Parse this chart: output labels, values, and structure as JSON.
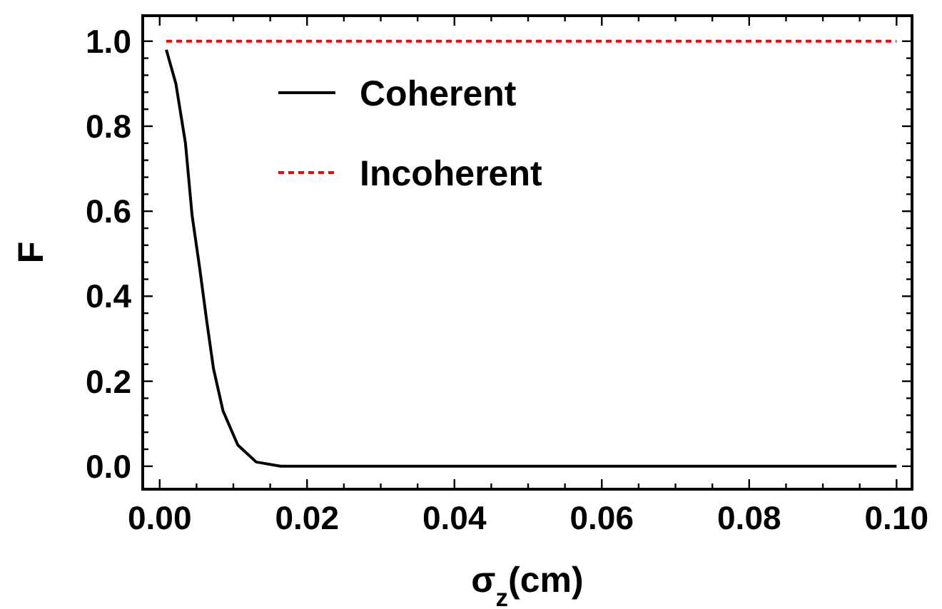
{
  "chart_data": {
    "type": "line",
    "xlabel": "σ$_{z}$(cm)",
    "ylabel": "F",
    "xlim": [
      -0.0023,
      0.1021
    ],
    "ylim": [
      -0.054,
      1.06
    ],
    "xticks": [
      {
        "value": 0,
        "label": "0.00"
      },
      {
        "value": 0.005,
        "label": null
      },
      {
        "value": 0.01,
        "label": null
      },
      {
        "value": 0.015,
        "label": null
      },
      {
        "value": 0.02,
        "label": "0.02"
      },
      {
        "value": 0.025,
        "label": null
      },
      {
        "value": 0.03,
        "label": null
      },
      {
        "value": 0.035,
        "label": null
      },
      {
        "value": 0.04,
        "label": "0.04"
      },
      {
        "value": 0.045,
        "label": null
      },
      {
        "value": 0.05,
        "label": null
      },
      {
        "value": 0.055,
        "label": null
      },
      {
        "value": 0.06,
        "label": "0.06"
      },
      {
        "value": 0.065,
        "label": null
      },
      {
        "value": 0.07,
        "label": null
      },
      {
        "value": 0.075,
        "label": null
      },
      {
        "value": 0.08,
        "label": "0.08"
      },
      {
        "value": 0.085,
        "label": null
      },
      {
        "value": 0.09,
        "label": null
      },
      {
        "value": 0.095,
        "label": null
      },
      {
        "value": 0.1,
        "label": "0.10"
      }
    ],
    "yticks": [
      {
        "value": 0,
        "label": "0.0"
      },
      {
        "value": 0.04,
        "label": null
      },
      {
        "value": 0.08,
        "label": null
      },
      {
        "value": 0.12,
        "label": null
      },
      {
        "value": 0.16,
        "label": null
      },
      {
        "value": 0.2,
        "label": "0.2"
      },
      {
        "value": 0.24,
        "label": null
      },
      {
        "value": 0.28,
        "label": null
      },
      {
        "value": 0.32,
        "label": null
      },
      {
        "value": 0.36,
        "label": null
      },
      {
        "value": 0.4,
        "label": "0.4"
      },
      {
        "value": 0.44,
        "label": null
      },
      {
        "value": 0.48,
        "label": null
      },
      {
        "value": 0.52,
        "label": null
      },
      {
        "value": 0.56,
        "label": null
      },
      {
        "value": 0.6,
        "label": "0.6"
      },
      {
        "value": 0.64,
        "label": null
      },
      {
        "value": 0.68,
        "label": null
      },
      {
        "value": 0.72,
        "label": null
      },
      {
        "value": 0.76,
        "label": null
      },
      {
        "value": 0.8,
        "label": "0.8"
      },
      {
        "value": 0.84,
        "label": null
      },
      {
        "value": 0.88,
        "label": null
      },
      {
        "value": 0.92,
        "label": null
      },
      {
        "value": 0.96,
        "label": null
      },
      {
        "value": 1.0,
        "label": "1.0"
      }
    ],
    "legend": "top",
    "grid": false,
    "series": [
      {
        "name": "Coherent",
        "color": "#000000",
        "line_style": "solid",
        "x": [
          0.0009,
          0.0022,
          0.0035,
          0.0044,
          0.0054,
          0.0064,
          0.0073,
          0.0086,
          0.0106,
          0.0131,
          0.0164,
          0.03,
          0.05,
          0.07,
          0.1
        ],
        "values": [
          0.98,
          0.9,
          0.76,
          0.59,
          0.47,
          0.34,
          0.23,
          0.13,
          0.05,
          0.01,
          0,
          0,
          0,
          0,
          0
        ]
      },
      {
        "name": "Incoherent",
        "color": "#ff0000",
        "line_style": "dashed",
        "x": [
          0.0009,
          0.1
        ],
        "values": [
          1,
          1
        ]
      }
    ]
  }
}
